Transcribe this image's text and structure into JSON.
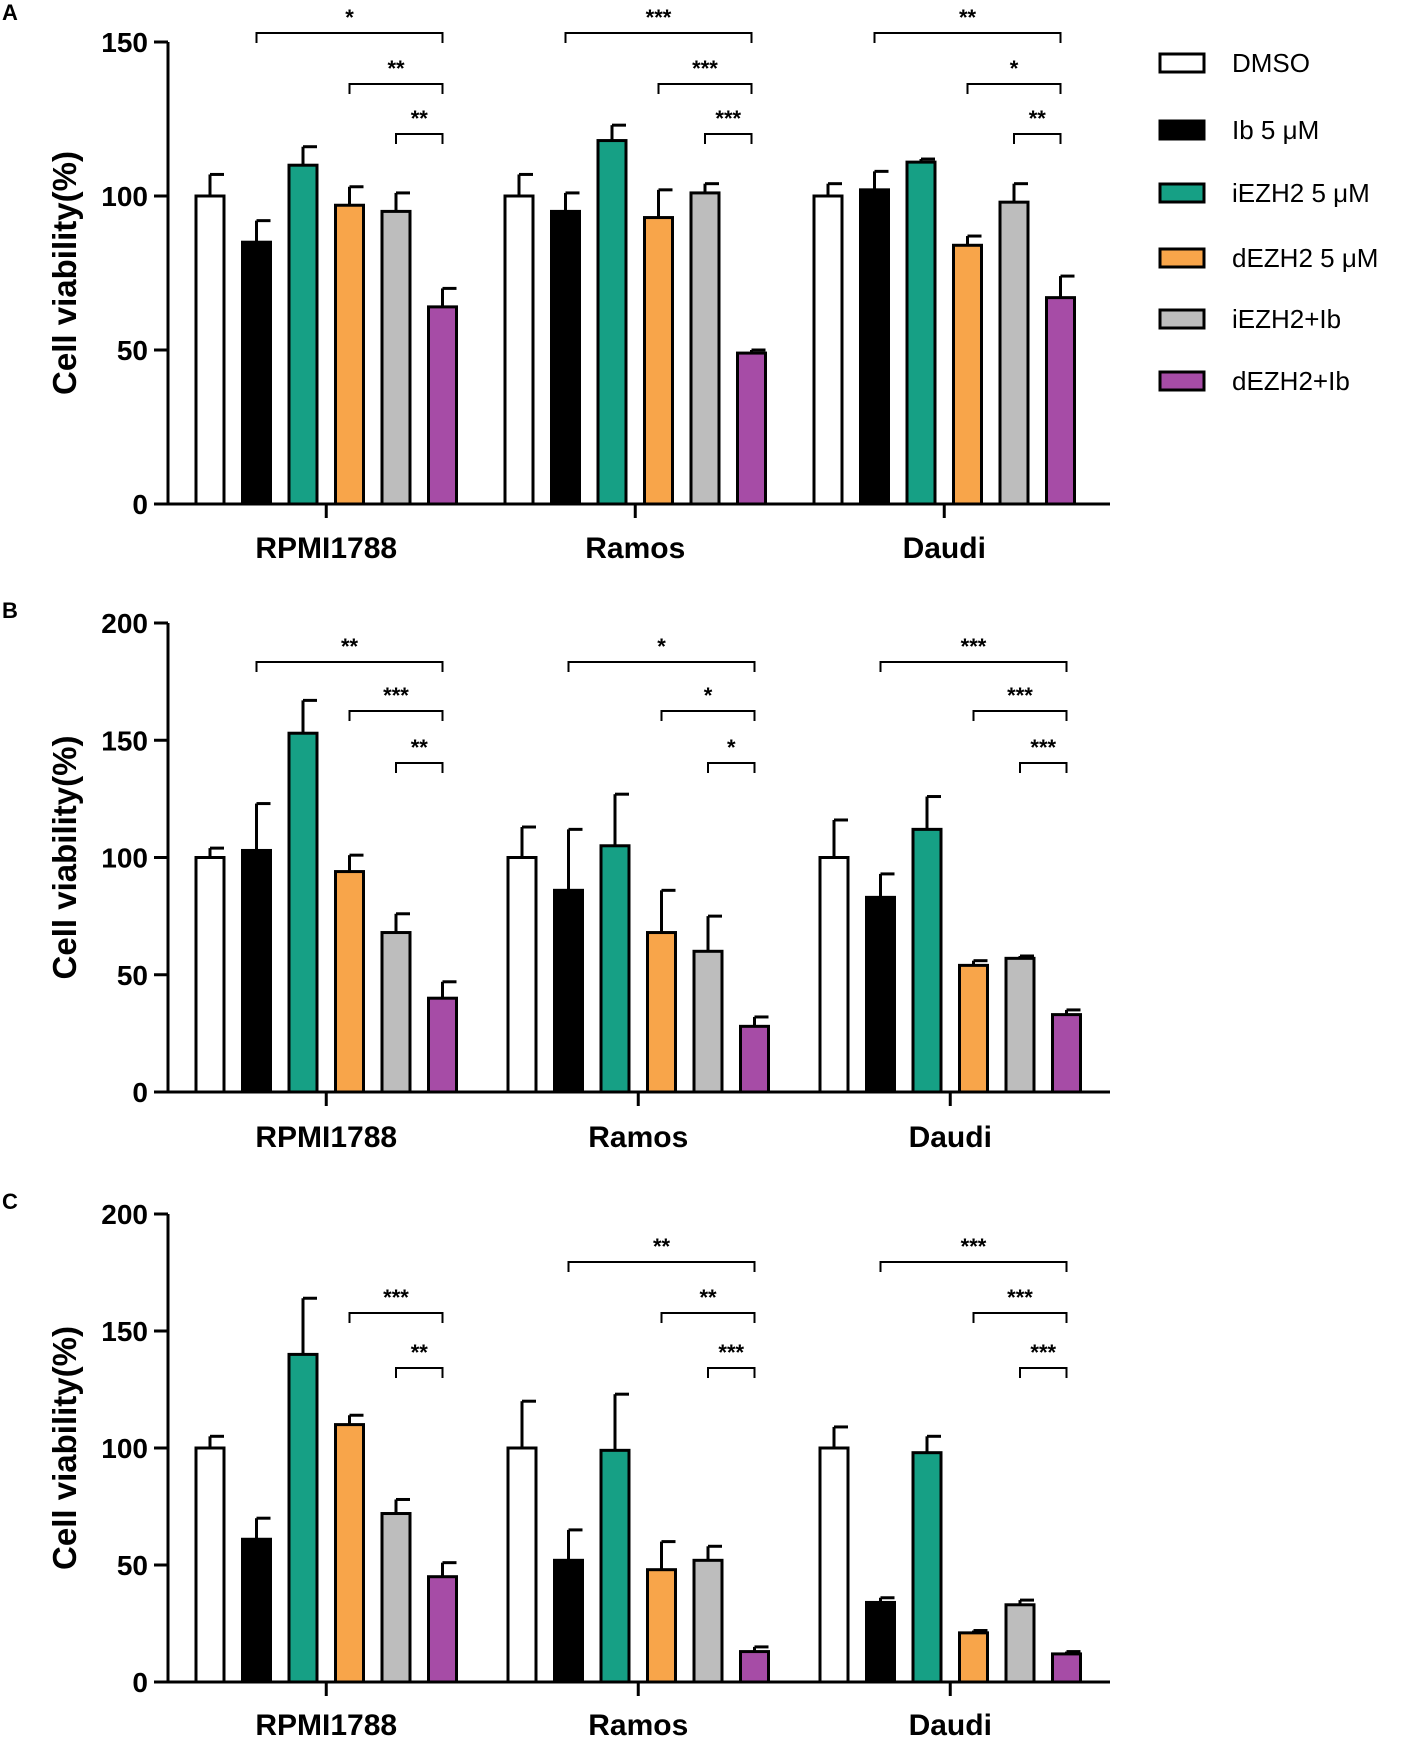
{
  "figure": {
    "ylabel": "Cell viability(%)",
    "categories": [
      "RPMI1788",
      "Ramos",
      "Daudi"
    ]
  },
  "legend": {
    "placement": "top-right",
    "items": [
      {
        "label": "DMSO",
        "color": "#ffffff"
      },
      {
        "label": "Ib 5 μM",
        "color": "#000000"
      },
      {
        "label": "iEZH2 5 μM",
        "color": "#16a085"
      },
      {
        "label": "dEZH2 5 μM",
        "color": "#f8a54a"
      },
      {
        "label": "iEZH2+Ib",
        "color": "#bdbdbd"
      },
      {
        "label": "dEZH2+Ib",
        "color": "#a64ca6"
      }
    ]
  },
  "chart_data": [
    {
      "type": "bar",
      "panel": "A",
      "ylabel": "Cell viability(%)",
      "ylim": [
        0,
        150
      ],
      "yticks": [
        0,
        50,
        100,
        150
      ],
      "categories": [
        "RPMI1788",
        "Ramos",
        "Daudi"
      ],
      "series": [
        {
          "name": "DMSO",
          "values": [
            100,
            100,
            100
          ],
          "errors": [
            7,
            7,
            4
          ]
        },
        {
          "name": "Ib 5 μM",
          "values": [
            85,
            95,
            102
          ],
          "errors": [
            7,
            6,
            6
          ]
        },
        {
          "name": "iEZH2 5 μM",
          "values": [
            110,
            118,
            111
          ],
          "errors": [
            6,
            5,
            1
          ]
        },
        {
          "name": "dEZH2 5 μM",
          "values": [
            97,
            93,
            84
          ],
          "errors": [
            6,
            9,
            3
          ]
        },
        {
          "name": "iEZH2+Ib",
          "values": [
            95,
            101,
            98
          ],
          "errors": [
            6,
            3,
            6
          ]
        },
        {
          "name": "dEZH2+Ib",
          "values": [
            64,
            49,
            67
          ],
          "errors": [
            6,
            1,
            7
          ]
        }
      ],
      "significance": [
        [
          {
            "from": 1,
            "to": 5,
            "label": "*"
          },
          {
            "from": 3,
            "to": 5,
            "label": "**"
          },
          {
            "from": 4,
            "to": 5,
            "label": "**"
          }
        ],
        [
          {
            "from": 1,
            "to": 5,
            "label": "***"
          },
          {
            "from": 3,
            "to": 5,
            "label": "***"
          },
          {
            "from": 4,
            "to": 5,
            "label": "***"
          }
        ],
        [
          {
            "from": 1,
            "to": 5,
            "label": "**"
          },
          {
            "from": 3,
            "to": 5,
            "label": "*"
          },
          {
            "from": 4,
            "to": 5,
            "label": "**"
          }
        ]
      ]
    },
    {
      "type": "bar",
      "panel": "B",
      "ylabel": "Cell viability(%)",
      "ylim": [
        0,
        200
      ],
      "yticks": [
        0,
        50,
        100,
        150,
        200
      ],
      "categories": [
        "RPMI1788",
        "Ramos",
        "Daudi"
      ],
      "series": [
        {
          "name": "DMSO",
          "values": [
            100,
            100,
            100
          ],
          "errors": [
            4,
            13,
            16
          ]
        },
        {
          "name": "Ib 5 μM",
          "values": [
            103,
            86,
            83
          ],
          "errors": [
            20,
            26,
            10
          ]
        },
        {
          "name": "iEZH2 5 μM",
          "values": [
            153,
            105,
            112
          ],
          "errors": [
            14,
            22,
            14
          ]
        },
        {
          "name": "dEZH2 5 μM",
          "values": [
            94,
            68,
            54
          ],
          "errors": [
            7,
            18,
            2
          ]
        },
        {
          "name": "iEZH2+Ib",
          "values": [
            68,
            60,
            57
          ],
          "errors": [
            8,
            15,
            1
          ]
        },
        {
          "name": "dEZH2+Ib",
          "values": [
            40,
            28,
            33
          ],
          "errors": [
            7,
            4,
            2
          ]
        }
      ],
      "significance": [
        [
          {
            "from": 1,
            "to": 5,
            "label": "**"
          },
          {
            "from": 3,
            "to": 5,
            "label": "***"
          },
          {
            "from": 4,
            "to": 5,
            "label": "**"
          }
        ],
        [
          {
            "from": 1,
            "to": 5,
            "label": "*"
          },
          {
            "from": 3,
            "to": 5,
            "label": "*"
          },
          {
            "from": 4,
            "to": 5,
            "label": "*"
          }
        ],
        [
          {
            "from": 1,
            "to": 5,
            "label": "***"
          },
          {
            "from": 3,
            "to": 5,
            "label": "***"
          },
          {
            "from": 4,
            "to": 5,
            "label": "***"
          }
        ]
      ]
    },
    {
      "type": "bar",
      "panel": "C",
      "ylabel": "Cell viability(%)",
      "ylim": [
        0,
        200
      ],
      "yticks": [
        0,
        50,
        100,
        150,
        200
      ],
      "categories": [
        "RPMI1788",
        "Ramos",
        "Daudi"
      ],
      "series": [
        {
          "name": "DMSO",
          "values": [
            100,
            100,
            100
          ],
          "errors": [
            5,
            20,
            9
          ]
        },
        {
          "name": "Ib 5 μM",
          "values": [
            61,
            52,
            34
          ],
          "errors": [
            9,
            13,
            2
          ]
        },
        {
          "name": "iEZH2 5 μM",
          "values": [
            140,
            99,
            98
          ],
          "errors": [
            24,
            24,
            7
          ]
        },
        {
          "name": "dEZH2 5 μM",
          "values": [
            110,
            48,
            21
          ],
          "errors": [
            4,
            12,
            1
          ]
        },
        {
          "name": "iEZH2+Ib",
          "values": [
            72,
            52,
            33
          ],
          "errors": [
            6,
            6,
            2
          ]
        },
        {
          "name": "dEZH2+Ib",
          "values": [
            45,
            13,
            12
          ],
          "errors": [
            6,
            2,
            1
          ]
        }
      ],
      "significance": [
        [
          {
            "from": 3,
            "to": 5,
            "label": "***"
          },
          {
            "from": 4,
            "to": 5,
            "label": "**"
          }
        ],
        [
          {
            "from": 1,
            "to": 5,
            "label": "**"
          },
          {
            "from": 3,
            "to": 5,
            "label": "**"
          },
          {
            "from": 4,
            "to": 5,
            "label": "***"
          }
        ],
        [
          {
            "from": 1,
            "to": 5,
            "label": "***"
          },
          {
            "from": 3,
            "to": 5,
            "label": "***"
          },
          {
            "from": 4,
            "to": 5,
            "label": "***"
          }
        ]
      ]
    }
  ]
}
